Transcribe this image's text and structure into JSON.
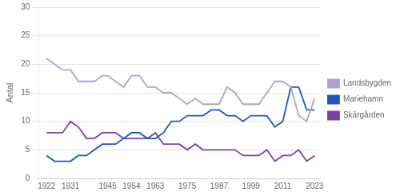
{
  "chart_data": {
    "type": "line",
    "ylabel": "Antal",
    "x": [
      1922,
      1925,
      1928,
      1931,
      1934,
      1937,
      1940,
      1943,
      1945,
      1948,
      1951,
      1954,
      1957,
      1960,
      1963,
      1966,
      1969,
      1972,
      1975,
      1978,
      1981,
      1984,
      1987,
      1990,
      1993,
      1996,
      1999,
      2002,
      2005,
      2008,
      2011,
      2014,
      2017,
      2020,
      2023
    ],
    "series": [
      {
        "name": "Landsbygden",
        "color": "#b0a0d0",
        "values": [
          21,
          20,
          19,
          19,
          17,
          17,
          17,
          18,
          18,
          17,
          16,
          18,
          18,
          16,
          16,
          15,
          15,
          14,
          13,
          14,
          13,
          13,
          13,
          16,
          15,
          13,
          13,
          13,
          15,
          17,
          17,
          16,
          11,
          10,
          14
        ]
      },
      {
        "name": "Mariehamn",
        "color": "#2255bb",
        "values": [
          4,
          3,
          3,
          3,
          4,
          4,
          5,
          6,
          6,
          6,
          7,
          8,
          8,
          7,
          7,
          8,
          10,
          10,
          11,
          11,
          11,
          12,
          12,
          11,
          11,
          10,
          11,
          11,
          11,
          9,
          10,
          16,
          16,
          12,
          12
        ]
      },
      {
        "name": "Skärgården",
        "color": "#7744aa",
        "values": [
          8,
          8,
          8,
          10,
          9,
          7,
          7,
          8,
          8,
          8,
          7,
          7,
          7,
          7,
          8,
          6,
          6,
          6,
          5,
          6,
          5,
          5,
          5,
          5,
          5,
          4,
          4,
          4,
          5,
          3,
          4,
          4,
          5,
          3,
          4
        ]
      }
    ],
    "xlim": [
      1919,
      2025
    ],
    "xticks": [
      1922,
      1931,
      1945,
      1954,
      1963,
      1975,
      1987,
      1999,
      2011,
      2023
    ],
    "ylim": [
      0,
      30
    ],
    "yticks": [
      0,
      5,
      10,
      15,
      20,
      25,
      30
    ],
    "grid": "y",
    "legend": "right"
  }
}
